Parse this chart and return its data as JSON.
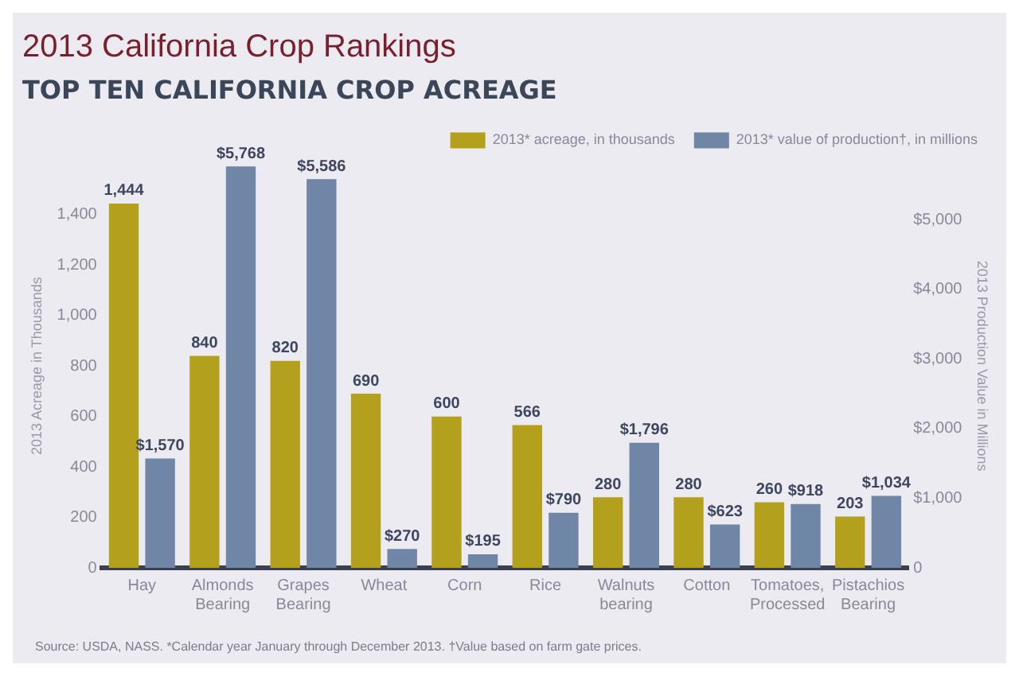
{
  "chart_data": {
    "type": "bar",
    "title": "2013 California Crop Rankings",
    "subtitle": "TOP TEN CALIFORNIA CROP ACREAGE",
    "ylabel": "2013 Acreage in Thousands",
    "y2label": "2013 Production Value in Millions",
    "categories": [
      "Hay",
      "Almonds Bearing",
      "Grapes Bearing",
      "Wheat",
      "Corn",
      "Rice",
      "Walnuts bearing",
      "Cotton",
      "Tomatoes, Processed",
      "Pistachios Bearing"
    ],
    "series": [
      {
        "name": "2013* acreage, in thousands",
        "color": "#b3a01c",
        "values": [
          1444,
          840,
          820,
          690,
          600,
          566,
          280,
          280,
          260,
          203
        ],
        "value_labels": [
          "1,444",
          "840",
          "820",
          "690",
          "600",
          "566",
          "280",
          "280",
          "260",
          "203"
        ]
      },
      {
        "name": "2013* value of production†, in millions",
        "color": "#6f86a6",
        "axis": "y2",
        "values": [
          1570,
          5768,
          5586,
          270,
          195,
          790,
          1796,
          623,
          918,
          1034
        ],
        "value_labels": [
          "$1,570",
          "$5,768",
          "$5,586",
          "$270",
          "$195",
          "$790",
          "$1,796",
          "$623",
          "$918",
          "$1,034"
        ]
      }
    ],
    "ylim": [
      0,
      1600
    ],
    "yticks": [
      0,
      200,
      400,
      600,
      800,
      {
        "value": 1000,
        "label": "1,000"
      },
      {
        "value": 1200,
        "label": "1,200"
      },
      {
        "value": 1400,
        "label": "1,400"
      }
    ],
    "y2lim": [
      0,
      5800
    ],
    "y2ticks": [
      0,
      {
        "value": 1000,
        "label": "$1,000"
      },
      {
        "value": 2000,
        "label": "$2,000"
      },
      {
        "value": 3000,
        "label": "$3,000"
      },
      {
        "value": 4000,
        "label": "$4,000"
      },
      {
        "value": 5000,
        "label": "$5,000"
      }
    ],
    "grid": false,
    "legend": "top right",
    "annotations": [
      "Source: USDA, NASS. *Calendar year January through December 2013. †Value based on farm gate prices."
    ]
  }
}
